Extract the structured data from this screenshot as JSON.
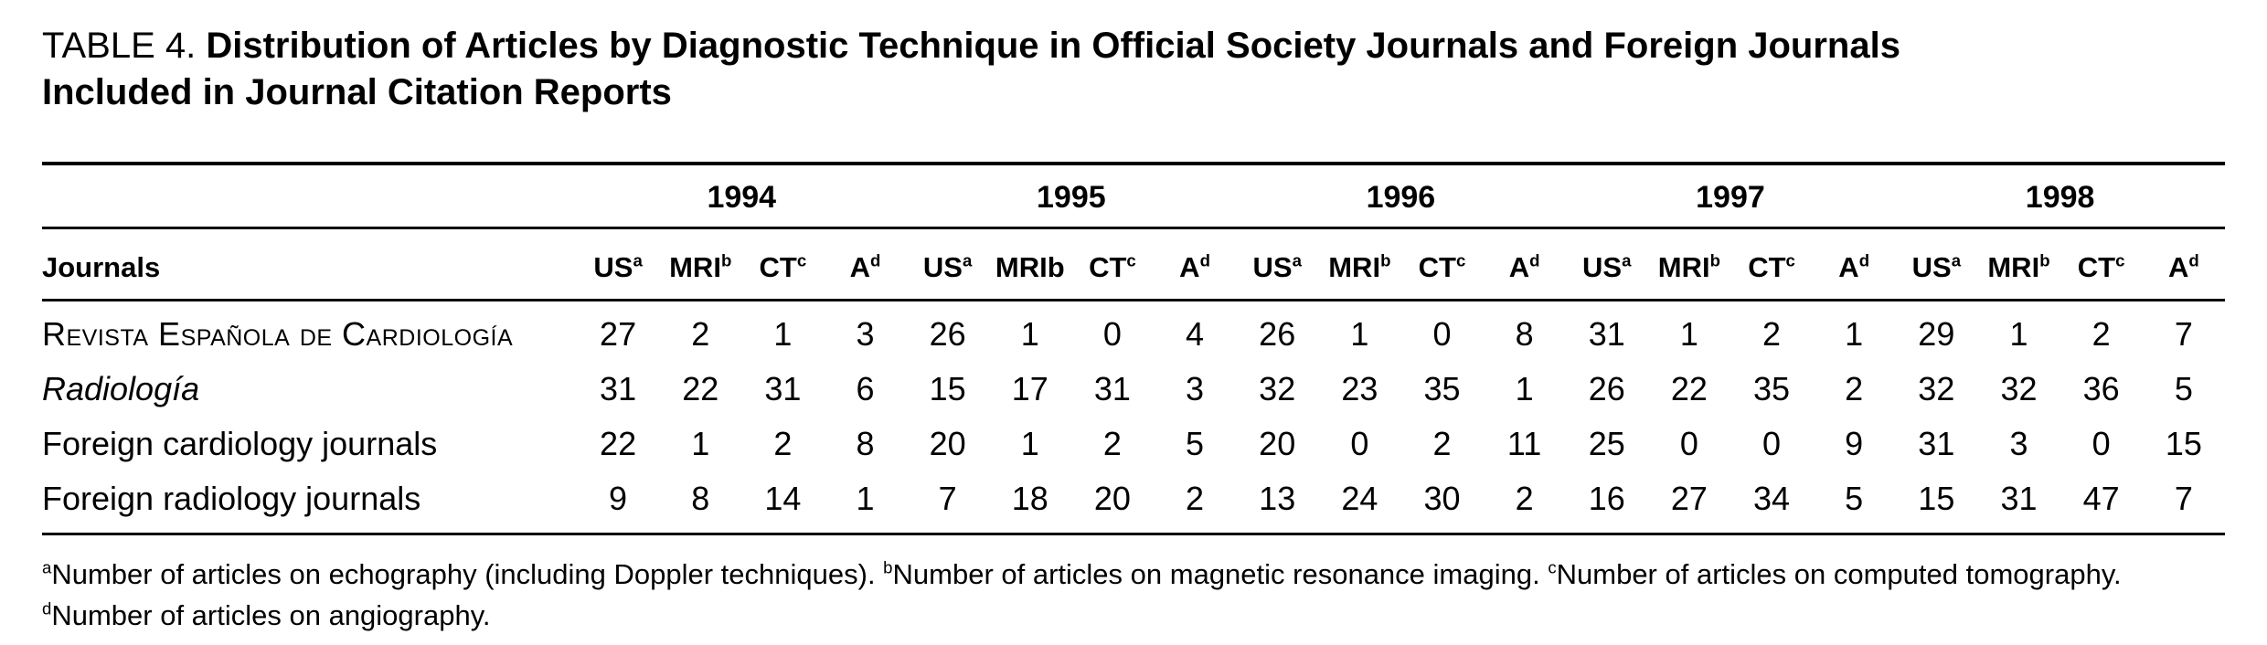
{
  "title": {
    "label": "TABLE 4.",
    "line1": "Distribution of Articles by Diagnostic Technique in Official Society Journals and Foreign Journals",
    "line2": "Included in Journal Citation Reports"
  },
  "chart_data": {
    "type": "table",
    "row_header": "Journals",
    "years": [
      "1994",
      "1995",
      "1996",
      "1997",
      "1998"
    ],
    "year_columns": [
      [
        {
          "text": "US",
          "sup": "a"
        },
        {
          "text": "MRI",
          "sup": "b"
        },
        {
          "text": "CT",
          "sup": "c"
        },
        {
          "text": "A",
          "sup": "d"
        }
      ],
      [
        {
          "text": "US",
          "sup": "a"
        },
        {
          "text": "MRIb",
          "sup": ""
        },
        {
          "text": "CT",
          "sup": "c"
        },
        {
          "text": "A",
          "sup": "d"
        }
      ],
      [
        {
          "text": "US",
          "sup": "a"
        },
        {
          "text": "MRI",
          "sup": "b"
        },
        {
          "text": "CT",
          "sup": "c"
        },
        {
          "text": "A",
          "sup": "d"
        }
      ],
      [
        {
          "text": "US",
          "sup": "a"
        },
        {
          "text": "MRI",
          "sup": "b"
        },
        {
          "text": "CT",
          "sup": "c"
        },
        {
          "text": "A",
          "sup": "d"
        }
      ],
      [
        {
          "text": "US",
          "sup": "a"
        },
        {
          "text": "MRI",
          "sup": "b"
        },
        {
          "text": "CT",
          "sup": "c"
        },
        {
          "text": "A",
          "sup": "d"
        }
      ]
    ],
    "rows": [
      {
        "journal": "Revista Española de Cardiología",
        "style": "smallcaps",
        "values": [
          27,
          2,
          1,
          3,
          26,
          1,
          0,
          4,
          26,
          1,
          0,
          8,
          31,
          1,
          2,
          1,
          29,
          1,
          2,
          7
        ]
      },
      {
        "journal": "Radiología",
        "style": "italic",
        "values": [
          31,
          22,
          31,
          6,
          15,
          17,
          31,
          3,
          32,
          23,
          35,
          1,
          26,
          22,
          35,
          2,
          32,
          32,
          36,
          5
        ]
      },
      {
        "journal": "Foreign cardiology journals",
        "style": "plain",
        "values": [
          22,
          1,
          2,
          8,
          20,
          1,
          2,
          5,
          20,
          0,
          2,
          11,
          25,
          0,
          0,
          9,
          31,
          3,
          0,
          15
        ]
      },
      {
        "journal": "Foreign radiology journals",
        "style": "plain",
        "values": [
          9,
          8,
          14,
          1,
          7,
          18,
          20,
          2,
          13,
          24,
          30,
          2,
          16,
          27,
          34,
          5,
          15,
          31,
          47,
          7
        ]
      }
    ],
    "footnotes": [
      {
        "sup": "a",
        "text": "Number of articles on echography (including Doppler techniques)."
      },
      {
        "sup": "b",
        "text": "Number of articles on magnetic resonance imaging."
      },
      {
        "sup": "c",
        "text": "Number of articles on computed tomography."
      },
      {
        "sup": "d",
        "text": "Number of articles on angiography."
      }
    ]
  }
}
